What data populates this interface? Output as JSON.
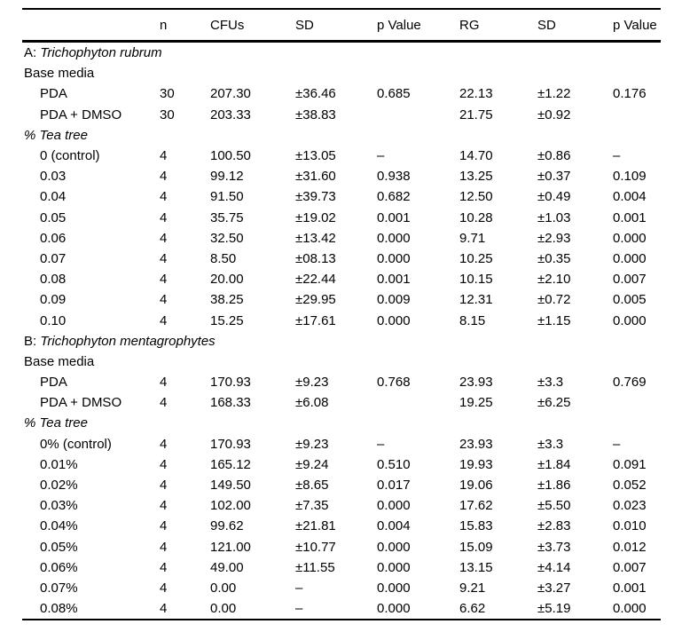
{
  "table": {
    "columns": [
      "",
      "n",
      "CFUs",
      "SD",
      "p Value",
      "RG",
      "SD",
      "p Value"
    ],
    "rows": [
      {
        "type": "section",
        "prefix": "A: ",
        "italic": "Trichophyton rubrum",
        "values": [
          "",
          "",
          "",
          "",
          "",
          "",
          ""
        ]
      },
      {
        "type": "plain",
        "label": "Base media",
        "values": [
          "",
          "",
          "",
          "",
          "",
          "",
          ""
        ]
      },
      {
        "type": "data",
        "label": "PDA",
        "values": [
          "30",
          "207.30",
          "±36.46",
          "0.685",
          "22.13",
          "±1.22",
          "0.176"
        ]
      },
      {
        "type": "data",
        "label": "PDA + DMSO",
        "values": [
          "30",
          "203.33",
          "±38.83",
          "",
          "21.75",
          "±0.92",
          ""
        ]
      },
      {
        "type": "italic-head",
        "label": "% Tea tree",
        "values": [
          "",
          "",
          "",
          "",
          "",
          "",
          ""
        ]
      },
      {
        "type": "data",
        "label": "0 (control)",
        "values": [
          "4",
          "100.50",
          "±13.05",
          "–",
          "14.70",
          "±0.86",
          "–"
        ]
      },
      {
        "type": "data",
        "label": "0.03",
        "values": [
          "4",
          "99.12",
          "±31.60",
          "0.938",
          "13.25",
          "±0.37",
          "0.109"
        ]
      },
      {
        "type": "data",
        "label": "0.04",
        "values": [
          "4",
          "91.50",
          "±39.73",
          "0.682",
          "12.50",
          "±0.49",
          "0.004"
        ]
      },
      {
        "type": "data",
        "label": "0.05",
        "values": [
          "4",
          "35.75",
          "±19.02",
          "0.001",
          "10.28",
          "±1.03",
          "0.001"
        ]
      },
      {
        "type": "data",
        "label": "0.06",
        "values": [
          "4",
          "32.50",
          "±13.42",
          "0.000",
          "9.71",
          "±2.93",
          "0.000"
        ]
      },
      {
        "type": "data",
        "label": "0.07",
        "values": [
          "4",
          "8.50",
          "±08.13",
          "0.000",
          "10.25",
          "±0.35",
          "0.000"
        ]
      },
      {
        "type": "data",
        "label": "0.08",
        "values": [
          "4",
          "20.00",
          "±22.44",
          "0.001",
          "10.15",
          "±2.10",
          "0.007"
        ]
      },
      {
        "type": "data",
        "label": "0.09",
        "values": [
          "4",
          "38.25",
          "±29.95",
          "0.009",
          "12.31",
          "±0.72",
          "0.005"
        ]
      },
      {
        "type": "data",
        "label": "0.10",
        "values": [
          "4",
          "15.25",
          "±17.61",
          "0.000",
          "8.15",
          "±1.15",
          "0.000"
        ]
      },
      {
        "type": "section",
        "prefix": "B: ",
        "italic": "Trichophyton mentagrophytes",
        "values": [
          "",
          "",
          "",
          "",
          "",
          "",
          ""
        ]
      },
      {
        "type": "plain",
        "label": "Base media",
        "values": [
          "",
          "",
          "",
          "",
          "",
          "",
          ""
        ]
      },
      {
        "type": "data",
        "label": "PDA",
        "values": [
          "4",
          "170.93",
          "±9.23",
          "0.768",
          "23.93",
          "±3.3",
          "0.769"
        ]
      },
      {
        "type": "data",
        "label": "PDA + DMSO",
        "values": [
          "4",
          "168.33",
          "±6.08",
          "",
          "19.25",
          "±6.25",
          ""
        ]
      },
      {
        "type": "italic-head",
        "label": "% Tea tree",
        "values": [
          "",
          "",
          "",
          "",
          "",
          "",
          ""
        ]
      },
      {
        "type": "data",
        "label": "0% (control)",
        "values": [
          "4",
          "170.93",
          "±9.23",
          "–",
          "23.93",
          "±3.3",
          "–"
        ]
      },
      {
        "type": "data",
        "label": "0.01%",
        "values": [
          "4",
          "165.12",
          "±9.24",
          "0.510",
          "19.93",
          "±1.84",
          "0.091"
        ]
      },
      {
        "type": "data",
        "label": "0.02%",
        "values": [
          "4",
          "149.50",
          "±8.65",
          "0.017",
          "19.06",
          "±1.86",
          "0.052"
        ]
      },
      {
        "type": "data",
        "label": "0.03%",
        "values": [
          "4",
          "102.00",
          "±7.35",
          "0.000",
          "17.62",
          "±5.50",
          "0.023"
        ]
      },
      {
        "type": "data",
        "label": "0.04%",
        "values": [
          "4",
          "99.62",
          "±21.81",
          "0.004",
          "15.83",
          "±2.83",
          "0.010"
        ]
      },
      {
        "type": "data",
        "label": "0.05%",
        "values": [
          "4",
          "121.00",
          "±10.77",
          "0.000",
          "15.09",
          "±3.73",
          "0.012"
        ]
      },
      {
        "type": "data",
        "label": "0.06%",
        "values": [
          "4",
          "49.00",
          "±11.55",
          "0.000",
          "13.15",
          "±4.14",
          "0.007"
        ]
      },
      {
        "type": "data",
        "label": "0.07%",
        "values": [
          "4",
          "0.00",
          "–",
          "0.000",
          "9.21",
          "±3.27",
          "0.001"
        ]
      },
      {
        "type": "data",
        "label": "0.08%",
        "values": [
          "4",
          "0.00",
          "–",
          "0.000",
          "6.62",
          "±5.19",
          "0.000"
        ]
      }
    ]
  }
}
